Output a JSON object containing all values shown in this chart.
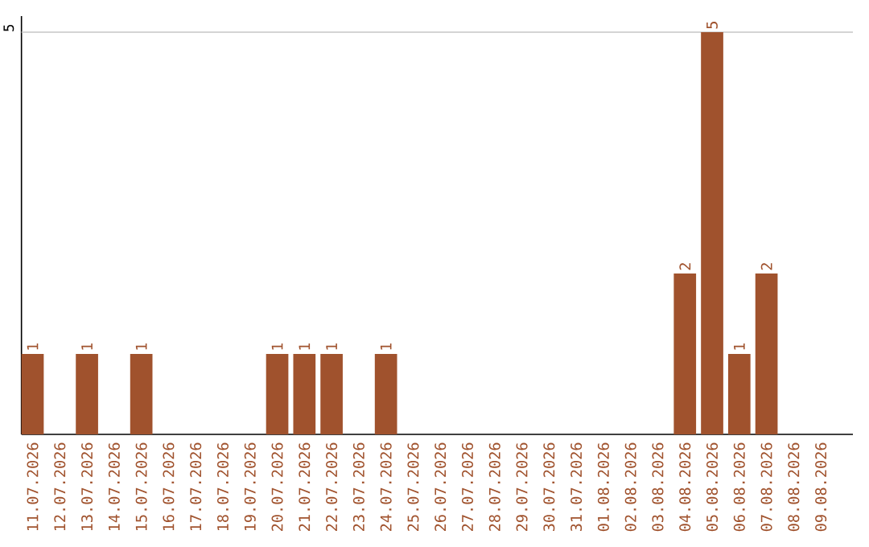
{
  "chart_data": {
    "type": "bar",
    "categories": [
      "11.07.2026",
      "12.07.2026",
      "13.07.2026",
      "14.07.2026",
      "15.07.2026",
      "16.07.2026",
      "17.07.2026",
      "18.07.2026",
      "19.07.2026",
      "20.07.2026",
      "21.07.2026",
      "22.07.2026",
      "23.07.2026",
      "24.07.2026",
      "25.07.2026",
      "26.07.2026",
      "27.07.2026",
      "28.07.2026",
      "29.07.2026",
      "30.07.2026",
      "31.07.2026",
      "01.08.2026",
      "02.08.2026",
      "03.08.2026",
      "04.08.2026",
      "05.08.2026",
      "06.08.2026",
      "07.08.2026",
      "08.08.2026",
      "09.08.2026"
    ],
    "values": [
      1,
      0,
      1,
      0,
      1,
      0,
      0,
      0,
      0,
      1,
      1,
      1,
      0,
      1,
      0,
      0,
      0,
      0,
      0,
      0,
      0,
      0,
      0,
      0,
      2,
      5,
      1,
      2,
      0,
      0
    ],
    "value_labels": [
      "1",
      null,
      "1",
      null,
      "1",
      null,
      null,
      null,
      null,
      "1",
      "1",
      "1",
      null,
      "1",
      null,
      null,
      null,
      null,
      null,
      null,
      null,
      null,
      null,
      null,
      "2",
      "5",
      "1",
      "2",
      null,
      null
    ],
    "color": "#a0522d",
    "ylim": [
      0,
      5.2
    ],
    "yticks": [
      5
    ],
    "grid": "y"
  }
}
